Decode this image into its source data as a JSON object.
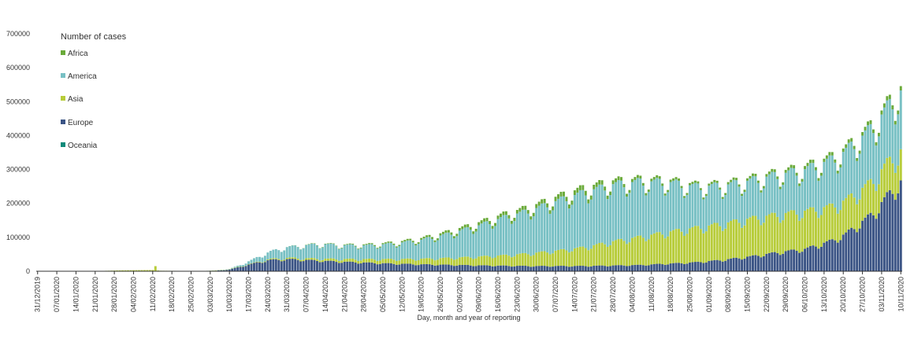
{
  "chart_data": {
    "type": "bar",
    "stacked": true,
    "title": "",
    "xlabel": "Day, month and year of reporting",
    "ylabel": "",
    "ylim": [
      0,
      700000
    ],
    "y_ticks": [
      "0",
      "100000",
      "200000",
      "300000",
      "400000",
      "500000",
      "600000",
      "700000"
    ],
    "start_date": "2019-12-31",
    "end_date": "2020-11-11",
    "x_tick_labels": [
      "31/12/2019",
      "07/01/2020",
      "14/01/2020",
      "21/01/2020",
      "28/01/2020",
      "04/02/2020",
      "11/02/2020",
      "18/02/2020",
      "25/02/2020",
      "03/03/2020",
      "10/03/2020",
      "17/03/2020",
      "24/03/2020",
      "31/03/2020",
      "07/04/2020",
      "14/04/2020",
      "21/04/2020",
      "28/04/2020",
      "05/05/2020",
      "12/05/2020",
      "19/05/2020",
      "26/05/2020",
      "02/06/2020",
      "09/06/2020",
      "16/06/2020",
      "23/06/2020",
      "30/06/2020",
      "07/07/2020",
      "14/07/2020",
      "21/07/2020",
      "28/07/2020",
      "04/08/2020",
      "11/08/2020",
      "18/08/2020",
      "25/08/2020",
      "01/09/2020",
      "08/09/2020",
      "15/09/2020",
      "22/09/2020",
      "29/09/2020",
      "06/10/2020",
      "13/10/2020",
      "20/10/2020",
      "27/10/2020",
      "03/11/2020",
      "10/11/2020"
    ],
    "legend_title": "Number of cases",
    "legend_position": "top-left",
    "series": [
      {
        "name": "Africa",
        "color": "#6aaa3a"
      },
      {
        "name": "America",
        "color": "#78c0c4"
      },
      {
        "name": "Asia",
        "color": "#b7cc39"
      },
      {
        "name": "Europe",
        "color": "#3b5485"
      },
      {
        "name": "Oceania",
        "color": "#0e8a7a"
      }
    ],
    "keyframes": {
      "Europe": [
        [
          0,
          0
        ],
        [
          60,
          0
        ],
        [
          65,
          1500
        ],
        [
          70,
          5000
        ],
        [
          75,
          15000
        ],
        [
          80,
          25000
        ],
        [
          85,
          33000
        ],
        [
          92,
          35000
        ],
        [
          100,
          32000
        ],
        [
          110,
          28000
        ],
        [
          120,
          25000
        ],
        [
          130,
          22000
        ],
        [
          140,
          20000
        ],
        [
          160,
          17000
        ],
        [
          180,
          15000
        ],
        [
          200,
          15000
        ],
        [
          220,
          18000
        ],
        [
          240,
          26000
        ],
        [
          250,
          33000
        ],
        [
          260,
          43000
        ],
        [
          270,
          55000
        ],
        [
          280,
          65000
        ],
        [
          290,
          90000
        ],
        [
          295,
          110000
        ],
        [
          300,
          140000
        ],
        [
          305,
          170000
        ],
        [
          308,
          200000
        ],
        [
          310,
          220000
        ],
        [
          312,
          235000
        ],
        [
          314,
          255000
        ],
        [
          316,
          270000
        ],
        [
          318,
          285000
        ],
        [
          320,
          300000
        ],
        [
          322,
          305000
        ],
        [
          324,
          300000
        ],
        [
          326,
          260000
        ],
        [
          327,
          240000
        ],
        [
          328,
          230000
        ]
      ],
      "Asia": [
        [
          0,
          0
        ],
        [
          20,
          200
        ],
        [
          30,
          2500
        ],
        [
          35,
          3000
        ],
        [
          42,
          3500
        ],
        [
          45,
          1500
        ],
        [
          60,
          600
        ],
        [
          70,
          800
        ],
        [
          80,
          1500
        ],
        [
          90,
          3500
        ],
        [
          100,
          5000
        ],
        [
          120,
          10000
        ],
        [
          140,
          16000
        ],
        [
          150,
          20000
        ],
        [
          160,
          25000
        ],
        [
          170,
          30000
        ],
        [
          180,
          37000
        ],
        [
          190,
          45000
        ],
        [
          200,
          55000
        ],
        [
          210,
          70000
        ],
        [
          220,
          82000
        ],
        [
          230,
          92000
        ],
        [
          240,
          100000
        ],
        [
          250,
          105000
        ],
        [
          260,
          110000
        ],
        [
          270,
          110000
        ],
        [
          280,
          110000
        ],
        [
          290,
          100000
        ],
        [
          300,
          95000
        ],
        [
          310,
          95000
        ],
        [
          315,
          90000
        ],
        [
          320,
          90000
        ],
        [
          324,
          90000
        ],
        [
          328,
          85000
        ]
      ],
      "America": [
        [
          0,
          0
        ],
        [
          55,
          0
        ],
        [
          60,
          50
        ],
        [
          70,
          800
        ],
        [
          75,
          5000
        ],
        [
          80,
          13000
        ],
        [
          85,
          22000
        ],
        [
          90,
          30000
        ],
        [
          95,
          35000
        ],
        [
          100,
          40000
        ],
        [
          105,
          42000
        ],
        [
          110,
          40000
        ],
        [
          120,
          40000
        ],
        [
          130,
          45000
        ],
        [
          140,
          55000
        ],
        [
          150,
          70000
        ],
        [
          160,
          88000
        ],
        [
          170,
          110000
        ],
        [
          180,
          125000
        ],
        [
          190,
          145000
        ],
        [
          200,
          160000
        ],
        [
          210,
          165000
        ],
        [
          220,
          160000
        ],
        [
          230,
          145000
        ],
        [
          240,
          120000
        ],
        [
          250,
          110000
        ],
        [
          260,
          110000
        ],
        [
          270,
          115000
        ],
        [
          280,
          120000
        ],
        [
          290,
          135000
        ],
        [
          300,
          150000
        ],
        [
          310,
          160000
        ],
        [
          315,
          170000
        ],
        [
          320,
          175000
        ],
        [
          324,
          170000
        ],
        [
          328,
          190000
        ]
      ],
      "Africa": [
        [
          0,
          0
        ],
        [
          90,
          100
        ],
        [
          100,
          1000
        ],
        [
          110,
          1500
        ],
        [
          120,
          2500
        ],
        [
          140,
          5000
        ],
        [
          160,
          9000
        ],
        [
          180,
          11000
        ],
        [
          190,
          13000
        ],
        [
          200,
          14000
        ],
        [
          210,
          11000
        ],
        [
          220,
          8000
        ],
        [
          240,
          6000
        ],
        [
          260,
          7000
        ],
        [
          280,
          9000
        ],
        [
          300,
          10000
        ],
        [
          310,
          12000
        ],
        [
          320,
          13000
        ],
        [
          328,
          14000
        ]
      ],
      "Oceania": [
        [
          0,
          0
        ],
        [
          70,
          0
        ],
        [
          80,
          300
        ],
        [
          90,
          300
        ],
        [
          100,
          100
        ],
        [
          180,
          200
        ],
        [
          200,
          400
        ],
        [
          220,
          300
        ],
        [
          240,
          100
        ],
        [
          328,
          80
        ]
      ]
    },
    "spikes": [
      [
        43,
        "Asia",
        15000
      ]
    ],
    "days": 316
  }
}
